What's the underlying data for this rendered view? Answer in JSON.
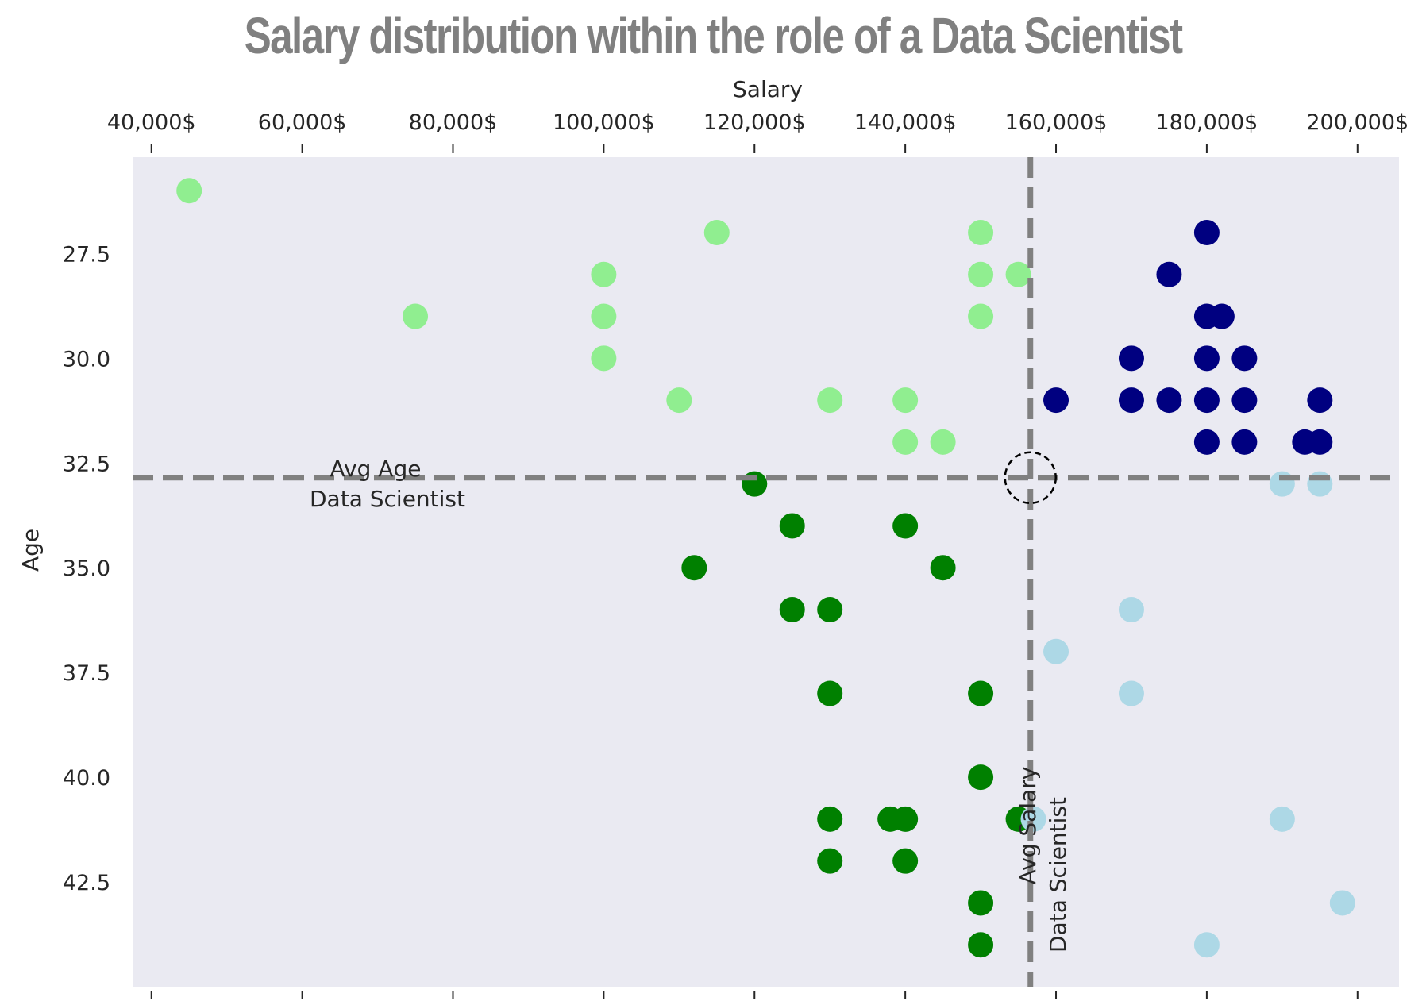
{
  "chart_data": {
    "type": "scatter",
    "title": "Salary distribution within the role of a Data Scientist",
    "xlabel": "Salary",
    "ylabel": "Age",
    "x_axis_position": "top",
    "y_axis_inverted": true,
    "xlim": [
      37500,
      205500
    ],
    "ylim": [
      45.0,
      25.2
    ],
    "xticks": [
      40000,
      60000,
      80000,
      100000,
      120000,
      140000,
      160000,
      180000,
      200000
    ],
    "xtick_labels": [
      "40,000$",
      "60,000$",
      "80,000$",
      "100,000$",
      "120,000$",
      "140,000$",
      "160,000$",
      "180,000$",
      "200,000$"
    ],
    "yticks": [
      27.5,
      30.0,
      32.5,
      35.0,
      37.5,
      40.0,
      42.5
    ],
    "ytick_labels": [
      "27.5",
      "30.0",
      "32.5",
      "35.0",
      "37.5",
      "40.0",
      "42.5"
    ],
    "grid": false,
    "background": "#eaeaf2",
    "title_color": "#808080",
    "reference_lines": {
      "avg_salary": 156600,
      "avg_age": 32.85,
      "color": "#808080",
      "style": "dashed"
    },
    "annotations": {
      "avg_age_line1": "Avg Age",
      "avg_age_line2": "Data Scientist",
      "avg_salary_line1": "Avg Salary",
      "avg_salary_line2": "Data Scientist"
    },
    "series": [
      {
        "color": "#90ee90",
        "points": [
          [
            45000,
            26.0
          ],
          [
            75000,
            29.0
          ],
          [
            100000,
            28.0
          ],
          [
            100000,
            29.0
          ],
          [
            100000,
            30.0
          ],
          [
            110000,
            31.0
          ],
          [
            115000,
            27.0
          ],
          [
            130000,
            31.0
          ],
          [
            140000,
            31.0
          ],
          [
            140000,
            32.0
          ],
          [
            145000,
            32.0
          ],
          [
            150000,
            27.0
          ],
          [
            150000,
            28.0
          ],
          [
            150000,
            29.0
          ],
          [
            155000,
            28.0
          ]
        ]
      },
      {
        "color": "#000080",
        "points": [
          [
            160000,
            31.0
          ],
          [
            170000,
            30.0
          ],
          [
            170000,
            31.0
          ],
          [
            175000,
            28.0
          ],
          [
            175000,
            31.0
          ],
          [
            180000,
            27.0
          ],
          [
            180000,
            29.0
          ],
          [
            182000,
            29.0
          ],
          [
            180000,
            30.0
          ],
          [
            180000,
            31.0
          ],
          [
            180000,
            32.0
          ],
          [
            185000,
            30.0
          ],
          [
            185000,
            31.0
          ],
          [
            185000,
            32.0
          ],
          [
            193000,
            32.0
          ],
          [
            195000,
            31.0
          ],
          [
            195000,
            32.0
          ]
        ]
      },
      {
        "color": "#008000",
        "points": [
          [
            112000,
            35.0
          ],
          [
            120000,
            33.0
          ],
          [
            125000,
            34.0
          ],
          [
            125000,
            36.0
          ],
          [
            130000,
            36.0
          ],
          [
            130000,
            38.0
          ],
          [
            130000,
            41.0
          ],
          [
            130000,
            42.0
          ],
          [
            138000,
            41.0
          ],
          [
            140000,
            34.0
          ],
          [
            140000,
            41.0
          ],
          [
            140000,
            42.0
          ],
          [
            145000,
            35.0
          ],
          [
            150000,
            38.0
          ],
          [
            150000,
            40.0
          ],
          [
            150000,
            43.0
          ],
          [
            150000,
            44.0
          ],
          [
            155000,
            41.0
          ]
        ]
      },
      {
        "color": "#add8e6",
        "points": [
          [
            157000,
            41.0
          ],
          [
            160000,
            37.0
          ],
          [
            170000,
            36.0
          ],
          [
            170000,
            38.0
          ],
          [
            180000,
            44.0
          ],
          [
            190000,
            33.0
          ],
          [
            190000,
            41.0
          ],
          [
            195000,
            33.0
          ],
          [
            198000,
            43.0
          ]
        ]
      }
    ]
  }
}
